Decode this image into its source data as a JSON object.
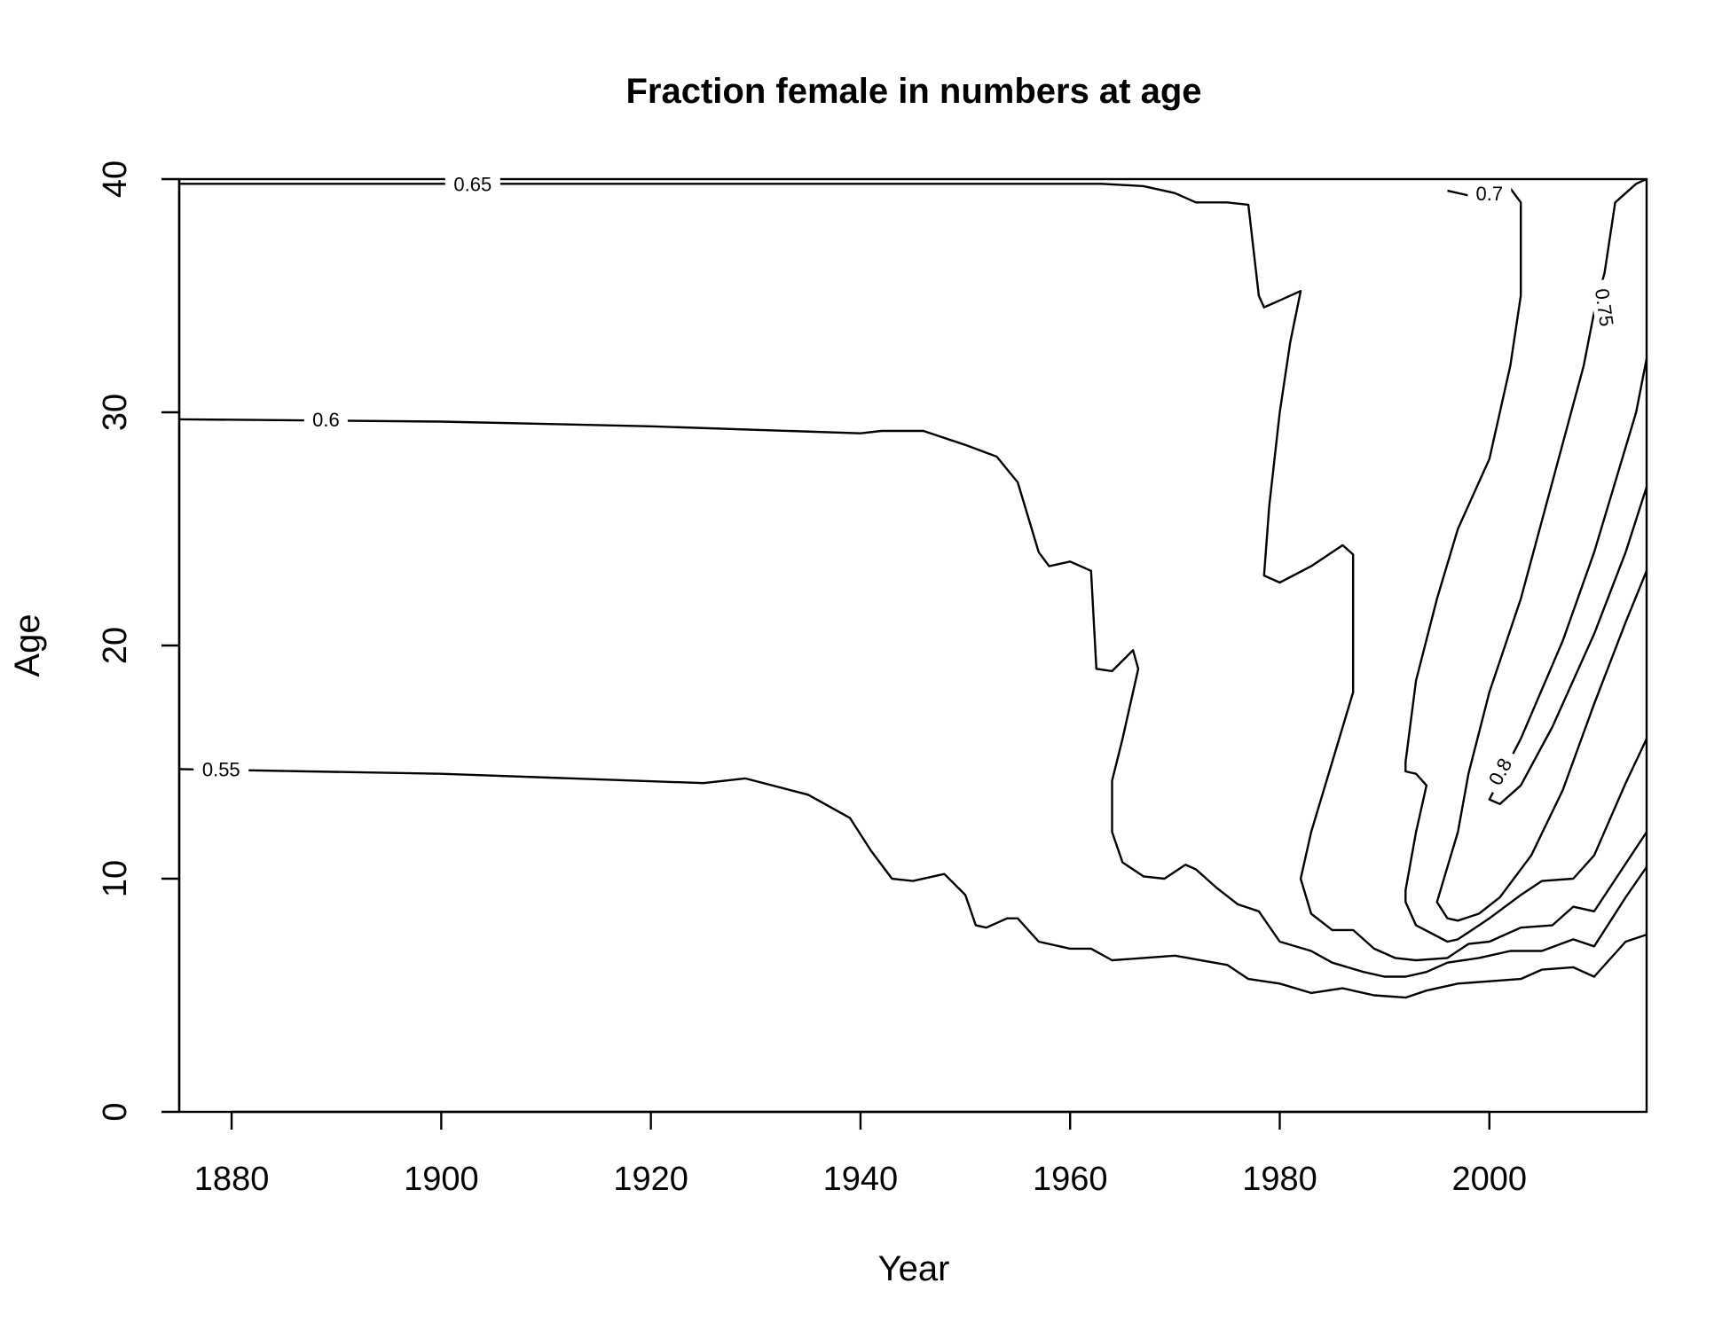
{
  "chart_data": {
    "type": "contour",
    "title": "Fraction female in numbers at age",
    "xlabel": "Year",
    "ylabel": "Age",
    "xlim": [
      1875,
      2015
    ],
    "ylim": [
      0,
      40
    ],
    "x_ticks": [
      1880,
      1900,
      1920,
      1940,
      1960,
      1980,
      2000
    ],
    "y_ticks": [
      0,
      10,
      20,
      30,
      40
    ],
    "grid": false,
    "legend": "none",
    "contours": [
      {
        "level": "0.55",
        "points": [
          [
            1875,
            14.7
          ],
          [
            1900,
            14.5
          ],
          [
            1925,
            14.1
          ],
          [
            1929,
            14.3
          ],
          [
            1935,
            13.6
          ],
          [
            1939,
            12.6
          ],
          [
            1941,
            11.2
          ],
          [
            1943,
            10.0
          ],
          [
            1945,
            9.9
          ],
          [
            1948,
            10.2
          ],
          [
            1950,
            9.3
          ],
          [
            1951,
            8.0
          ],
          [
            1952,
            7.9
          ],
          [
            1954,
            8.3
          ],
          [
            1955,
            8.3
          ],
          [
            1957,
            7.3
          ],
          [
            1960,
            7.0
          ],
          [
            1962,
            7.0
          ],
          [
            1964,
            6.5
          ],
          [
            1967,
            6.6
          ],
          [
            1970,
            6.7
          ],
          [
            1975,
            6.3
          ],
          [
            1977,
            5.7
          ],
          [
            1980,
            5.5
          ],
          [
            1983,
            5.1
          ],
          [
            1986,
            5.3
          ],
          [
            1989,
            5.0
          ],
          [
            1992,
            4.9
          ],
          [
            1994,
            5.2
          ],
          [
            1997,
            5.5
          ],
          [
            2000,
            5.6
          ],
          [
            2003,
            5.7
          ],
          [
            2005,
            6.1
          ],
          [
            2008,
            6.2
          ],
          [
            2010,
            5.8
          ],
          [
            2013,
            7.3
          ],
          [
            2015,
            7.6
          ]
        ],
        "label_at": [
          1879,
          14.7
        ],
        "label_angle": 0
      },
      {
        "level": "0.6",
        "points": [
          [
            1875,
            29.7
          ],
          [
            1900,
            29.6
          ],
          [
            1920,
            29.4
          ],
          [
            1940,
            29.1
          ],
          [
            1942,
            29.2
          ],
          [
            1946,
            29.2
          ],
          [
            1950,
            28.6
          ],
          [
            1953,
            28.1
          ],
          [
            1955,
            27.0
          ],
          [
            1956,
            25.5
          ],
          [
            1957,
            24.0
          ],
          [
            1958,
            23.4
          ],
          [
            1960,
            23.6
          ],
          [
            1962,
            23.2
          ],
          [
            1962.5,
            19.0
          ],
          [
            1964,
            18.9
          ],
          [
            1966,
            19.8
          ],
          [
            1966.5,
            19.0
          ],
          [
            1965,
            16.0
          ],
          [
            1964,
            14.2
          ],
          [
            1964,
            12.0
          ],
          [
            1965,
            10.7
          ],
          [
            1967,
            10.1
          ],
          [
            1969,
            10.0
          ],
          [
            1971,
            10.6
          ],
          [
            1972,
            10.4
          ],
          [
            1974,
            9.6
          ],
          [
            1976,
            8.9
          ],
          [
            1978,
            8.6
          ],
          [
            1980,
            7.3
          ],
          [
            1983,
            6.9
          ],
          [
            1985,
            6.4
          ],
          [
            1988,
            6.0
          ],
          [
            1990,
            5.8
          ],
          [
            1992,
            5.8
          ],
          [
            1994,
            6.0
          ],
          [
            1996,
            6.4
          ],
          [
            1999,
            6.6
          ],
          [
            2002,
            6.9
          ],
          [
            2005,
            6.9
          ],
          [
            2008,
            7.4
          ],
          [
            2010,
            7.1
          ],
          [
            2013,
            9.2
          ],
          [
            2015,
            10.5
          ]
        ],
        "label_at": [
          1889,
          29.7
        ],
        "label_angle": 0
      },
      {
        "level": "0.65",
        "points": [
          [
            1875,
            39.8
          ],
          [
            1900,
            39.8
          ],
          [
            1925,
            39.8
          ],
          [
            1950,
            39.8
          ],
          [
            1963,
            39.8
          ],
          [
            1967,
            39.7
          ],
          [
            1970,
            39.4
          ],
          [
            1972,
            39.0
          ],
          [
            1975,
            39.0
          ],
          [
            1977,
            38.9
          ],
          [
            1978,
            35.0
          ],
          [
            1978.5,
            34.5
          ],
          [
            1980,
            34.8
          ],
          [
            1982,
            35.2
          ],
          [
            1981,
            33.0
          ],
          [
            1980,
            30.0
          ],
          [
            1979,
            26.0
          ],
          [
            1978.5,
            23.0
          ],
          [
            1980,
            22.7
          ],
          [
            1983,
            23.4
          ],
          [
            1986,
            24.3
          ],
          [
            1987,
            23.9
          ],
          [
            1987,
            18.0
          ],
          [
            1985,
            15.0
          ],
          [
            1983,
            12.0
          ],
          [
            1982,
            10.0
          ],
          [
            1983,
            8.5
          ],
          [
            1985,
            7.8
          ],
          [
            1987,
            7.8
          ],
          [
            1989,
            7.0
          ],
          [
            1991,
            6.6
          ],
          [
            1993,
            6.5
          ],
          [
            1996,
            6.6
          ],
          [
            1998,
            7.2
          ],
          [
            2000,
            7.3
          ],
          [
            2003,
            7.9
          ],
          [
            2006,
            8.0
          ],
          [
            2008,
            8.8
          ],
          [
            2010,
            8.6
          ],
          [
            2015,
            12.0
          ]
        ],
        "label_at": [
          1903,
          39.8
        ],
        "label_angle": 0
      },
      {
        "level": "0.7",
        "points": [
          [
            1996,
            39.5
          ],
          [
            1998,
            39.3
          ],
          [
            2002,
            39.6
          ],
          [
            2003,
            39.0
          ],
          [
            2003,
            35.0
          ],
          [
            2002,
            32.0
          ],
          [
            2000,
            28.0
          ],
          [
            1997,
            25.0
          ],
          [
            1995,
            22.0
          ],
          [
            1993,
            18.5
          ],
          [
            1992,
            15.0
          ],
          [
            1992,
            14.6
          ],
          [
            1993,
            14.5
          ],
          [
            1994,
            14.0
          ],
          [
            1993,
            12.0
          ],
          [
            1992,
            9.5
          ],
          [
            1992,
            9.0
          ],
          [
            1993,
            8.0
          ],
          [
            1996,
            7.3
          ],
          [
            1997,
            7.4
          ],
          [
            2000,
            8.3
          ],
          [
            2003,
            9.3
          ],
          [
            2005,
            9.9
          ],
          [
            2008,
            10.0
          ],
          [
            2010,
            11.0
          ],
          [
            2013,
            14.1
          ],
          [
            2015,
            16.0
          ]
        ],
        "label_at": [
          2000,
          39.4
        ],
        "label_angle": 0
      },
      {
        "level": "0.75",
        "points": [
          [
            2015,
            40.0
          ],
          [
            2014,
            39.8
          ],
          [
            2012,
            39.0
          ],
          [
            2011,
            36.0
          ],
          [
            2010,
            34.3
          ],
          [
            2009,
            32.0
          ],
          [
            2006,
            27.0
          ],
          [
            2003,
            22.0
          ],
          [
            2000,
            18.0
          ],
          [
            1998,
            14.5
          ],
          [
            1997,
            12.0
          ],
          [
            1996,
            10.5
          ],
          [
            1995,
            9.0
          ],
          [
            1996,
            8.3
          ],
          [
            1997,
            8.2
          ],
          [
            1999,
            8.5
          ],
          [
            2001,
            9.2
          ],
          [
            2004,
            11.0
          ],
          [
            2007,
            13.8
          ],
          [
            2010,
            17.5
          ],
          [
            2013,
            21.0
          ],
          [
            2015,
            23.2
          ]
        ],
        "label_at": [
          2011,
          34.5
        ],
        "label_angle": 82
      },
      {
        "level": "0.8",
        "points": [
          [
            2015,
            26.8
          ],
          [
            2013,
            24.0
          ],
          [
            2010,
            20.5
          ],
          [
            2006,
            16.5
          ],
          [
            2003,
            14.0
          ],
          [
            2001,
            13.2
          ],
          [
            2000,
            13.4
          ],
          [
            2003,
            16.0
          ],
          [
            2007,
            20.2
          ],
          [
            2010,
            24.0
          ],
          [
            2014,
            30.0
          ],
          [
            2015,
            32.3
          ]
        ],
        "label_at": [
          2001,
          14.6
        ],
        "label_angle": -62
      }
    ]
  }
}
